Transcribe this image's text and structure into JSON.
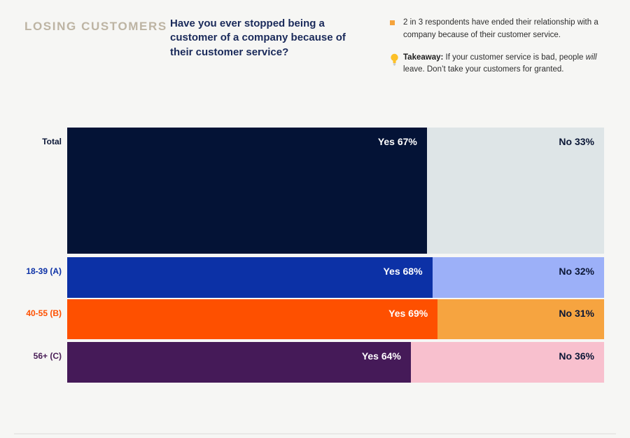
{
  "header": {
    "section_title": "LOSING CUSTOMERS",
    "question": "Have you ever stopped being a customer of a company because of their customer service?"
  },
  "notes": {
    "stat": "2 in 3 respondents have ended their relationship with a company because of their customer service.",
    "takeaway_label": "Takeaway:",
    "takeaway_part1": " If your customer service is bad, people ",
    "takeaway_italic": "will",
    "takeaway_part2": " leave. Don’t take your customers for granted."
  },
  "palette": {
    "background": "#f6f6f4",
    "section_title": "#bdb4a3",
    "question_text": "#1a2a5a",
    "dark_text": "#0b1736",
    "bullet_orange": "#f5a33b",
    "bulb_yellow": "#fcc028",
    "divider": "#e9e8e6"
  },
  "chart_data": {
    "type": "bar",
    "orientation": "horizontal",
    "stacked": true,
    "unit": "%",
    "categories": [
      "Total",
      "18-39 (A)",
      "40-55 (B)",
      "56+ (C)"
    ],
    "series": [
      {
        "name": "Yes",
        "values": [
          67,
          68,
          69,
          64
        ]
      },
      {
        "name": "No",
        "values": [
          33,
          32,
          31,
          36
        ]
      }
    ],
    "rows": [
      {
        "label": "Total",
        "yes": 67,
        "no": 33,
        "yes_label": "Yes 67%",
        "no_label": "No 33%",
        "yes_color": "#041336",
        "no_color": "#dee5e7",
        "label_color": "#0b1736"
      },
      {
        "label": "18-39 (A)",
        "yes": 68,
        "no": 32,
        "yes_label": "Yes 68%",
        "no_label": "No 32%",
        "yes_color": "#0c31a6",
        "no_color": "#9cb0f8",
        "label_color": "#0c31a6"
      },
      {
        "label": "40-55 (B)",
        "yes": 69,
        "no": 31,
        "yes_label": "Yes 69%",
        "no_label": "No 31%",
        "yes_color": "#fe5000",
        "no_color": "#f6a440",
        "label_color": "#fe5000"
      },
      {
        "label": "56+ (C)",
        "yes": 64,
        "no": 36,
        "yes_label": "Yes 64%",
        "no_label": "No 36%",
        "yes_color": "#451a58",
        "no_color": "#f8c0ce",
        "label_color": "#4b2058"
      }
    ],
    "title": "Have you ever stopped being a customer of a company because of their customer service?",
    "xlabel": "",
    "ylabel": "",
    "xlim": [
      0,
      100
    ],
    "grid": false,
    "legend": "values labeled inside segments"
  }
}
